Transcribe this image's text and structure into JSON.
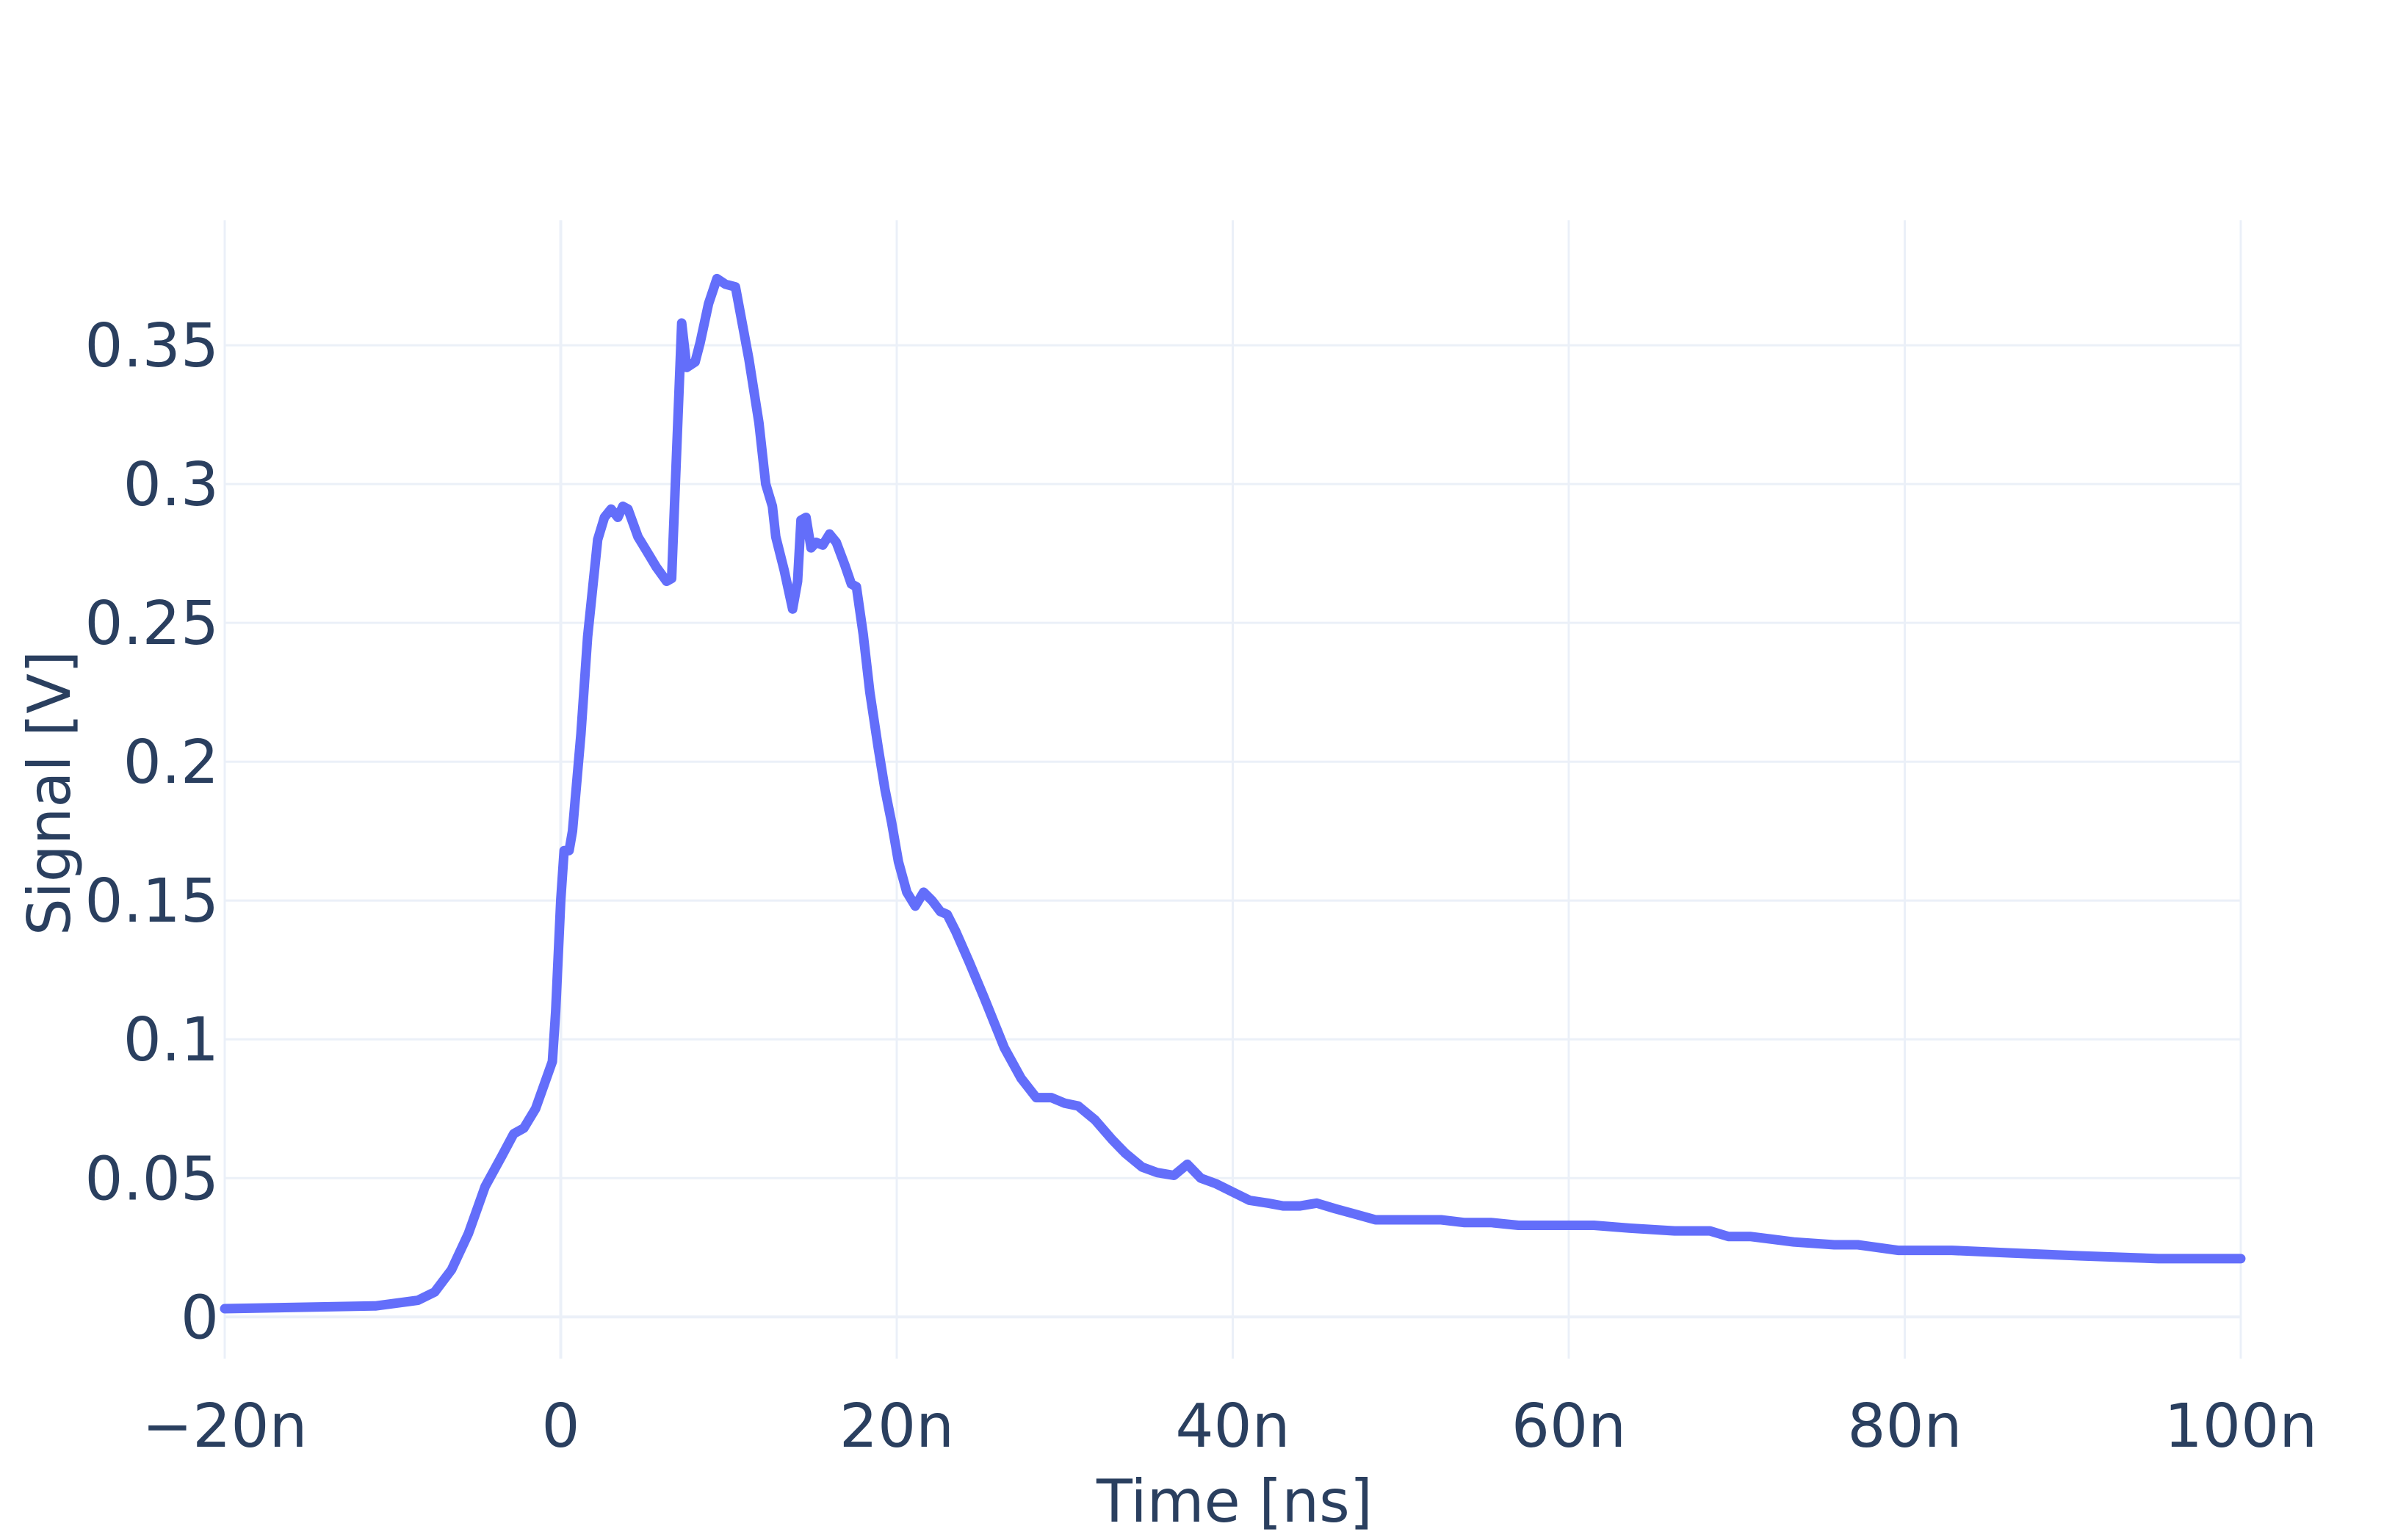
{
  "chart_data": {
    "type": "line",
    "title": "",
    "xlabel": "Time [ns]",
    "ylabel": "Signal [V]",
    "xlim": [
      -20,
      100
    ],
    "ylim": [
      -0.015,
      0.395
    ],
    "grid": true,
    "colors": {
      "series": "#636efa",
      "grid": "#ebf0f8",
      "zeroline": "#ebf0f8",
      "text": "#2a3f5f",
      "background": "#ffffff"
    },
    "x_ticks": [
      {
        "value": -20,
        "label": "−20n"
      },
      {
        "value": 0,
        "label": "0"
      },
      {
        "value": 20,
        "label": "20n"
      },
      {
        "value": 40,
        "label": "40n"
      },
      {
        "value": 60,
        "label": "60n"
      },
      {
        "value": 80,
        "label": "80n"
      },
      {
        "value": 100,
        "label": "100n"
      }
    ],
    "y_ticks": [
      {
        "value": 0,
        "label": "0"
      },
      {
        "value": 0.05,
        "label": "0.05"
      },
      {
        "value": 0.1,
        "label": "0.1"
      },
      {
        "value": 0.15,
        "label": "0.15"
      },
      {
        "value": 0.2,
        "label": "0.2"
      },
      {
        "value": 0.25,
        "label": "0.25"
      },
      {
        "value": 0.3,
        "label": "0.3"
      },
      {
        "value": 0.35,
        "label": "0.35"
      }
    ],
    "series": [
      {
        "points": [
          [
            -20,
            0.003
          ],
          [
            -11,
            0.004
          ],
          [
            -8.5,
            0.006
          ],
          [
            -7.5,
            0.009
          ],
          [
            -6.5,
            0.017
          ],
          [
            -5.5,
            0.03
          ],
          [
            -4.5,
            0.047
          ],
          [
            -3.5,
            0.058
          ],
          [
            -2.8,
            0.066
          ],
          [
            -2.2,
            0.068
          ],
          [
            -1.5,
            0.075
          ],
          [
            -0.5,
            0.092
          ],
          [
            -0.3,
            0.11
          ],
          [
            0,
            0.15
          ],
          [
            0.2,
            0.168
          ],
          [
            0.5,
            0.168
          ],
          [
            0.7,
            0.175
          ],
          [
            1.2,
            0.21
          ],
          [
            1.6,
            0.245
          ],
          [
            2.2,
            0.28
          ],
          [
            2.6,
            0.288
          ],
          [
            3,
            0.291
          ],
          [
            3.4,
            0.288
          ],
          [
            3.7,
            0.292
          ],
          [
            4.0,
            0.291
          ],
          [
            4.6,
            0.281
          ],
          [
            5.1,
            0.276
          ],
          [
            5.7,
            0.27
          ],
          [
            6.3,
            0.265
          ],
          [
            6.6,
            0.266
          ],
          [
            7.2,
            0.358
          ],
          [
            7.5,
            0.342
          ],
          [
            8.0,
            0.344
          ],
          [
            8.3,
            0.351
          ],
          [
            8.8,
            0.365
          ],
          [
            9.3,
            0.374
          ],
          [
            9.8,
            0.372
          ],
          [
            10.4,
            0.371
          ],
          [
            11.2,
            0.345
          ],
          [
            11.8,
            0.322
          ],
          [
            12.2,
            0.3
          ],
          [
            12.6,
            0.292
          ],
          [
            12.8,
            0.281
          ],
          [
            13.3,
            0.269
          ],
          [
            13.8,
            0.255
          ],
          [
            14.1,
            0.265
          ],
          [
            14.3,
            0.287
          ],
          [
            14.6,
            0.288
          ],
          [
            14.9,
            0.277
          ],
          [
            15.2,
            0.279
          ],
          [
            15.6,
            0.278
          ],
          [
            16.0,
            0.282
          ],
          [
            16.4,
            0.279
          ],
          [
            16.9,
            0.271
          ],
          [
            17.3,
            0.264
          ],
          [
            17.6,
            0.263
          ],
          [
            18.0,
            0.246
          ],
          [
            18.4,
            0.225
          ],
          [
            18.9,
            0.205
          ],
          [
            19.3,
            0.19
          ],
          [
            19.7,
            0.178
          ],
          [
            20.1,
            0.164
          ],
          [
            20.6,
            0.153
          ],
          [
            21.1,
            0.148
          ],
          [
            21.6,
            0.153
          ],
          [
            22.1,
            0.15
          ],
          [
            22.6,
            0.146
          ],
          [
            23.0,
            0.145
          ],
          [
            23.5,
            0.139
          ],
          [
            24.3,
            0.128
          ],
          [
            25.2,
            0.115
          ],
          [
            26.4,
            0.097
          ],
          [
            27.4,
            0.086
          ],
          [
            28.3,
            0.079
          ],
          [
            29.2,
            0.079
          ],
          [
            30.0,
            0.077
          ],
          [
            30.8,
            0.076
          ],
          [
            31.8,
            0.071
          ],
          [
            32.8,
            0.064
          ],
          [
            33.6,
            0.059
          ],
          [
            34.6,
            0.054
          ],
          [
            35.5,
            0.052
          ],
          [
            36.5,
            0.051
          ],
          [
            37.3,
            0.055
          ],
          [
            38.1,
            0.05
          ],
          [
            39.0,
            0.048
          ],
          [
            40.0,
            0.045
          ],
          [
            41.0,
            0.042
          ],
          [
            42.1,
            0.041
          ],
          [
            43.0,
            0.04
          ],
          [
            44.0,
            0.04
          ],
          [
            45.0,
            0.041
          ],
          [
            46.1,
            0.039
          ],
          [
            47.3,
            0.037
          ],
          [
            48.5,
            0.035
          ],
          [
            49.7,
            0.035
          ],
          [
            51.0,
            0.035
          ],
          [
            52.4,
            0.035
          ],
          [
            53.8,
            0.034
          ],
          [
            55.4,
            0.034
          ],
          [
            57.0,
            0.033
          ],
          [
            59.0,
            0.033
          ],
          [
            61.5,
            0.033
          ],
          [
            63.6,
            0.032
          ],
          [
            66.3,
            0.031
          ],
          [
            68.4,
            0.031
          ],
          [
            69.5,
            0.029
          ],
          [
            70.8,
            0.029
          ],
          [
            73.4,
            0.027
          ],
          [
            75.8,
            0.026
          ],
          [
            77.2,
            0.026
          ],
          [
            79.6,
            0.024
          ],
          [
            82.8,
            0.024
          ],
          [
            86.4,
            0.023
          ],
          [
            90.5,
            0.022
          ],
          [
            95.1,
            0.021
          ],
          [
            100.0,
            0.021
          ]
        ]
      }
    ]
  }
}
